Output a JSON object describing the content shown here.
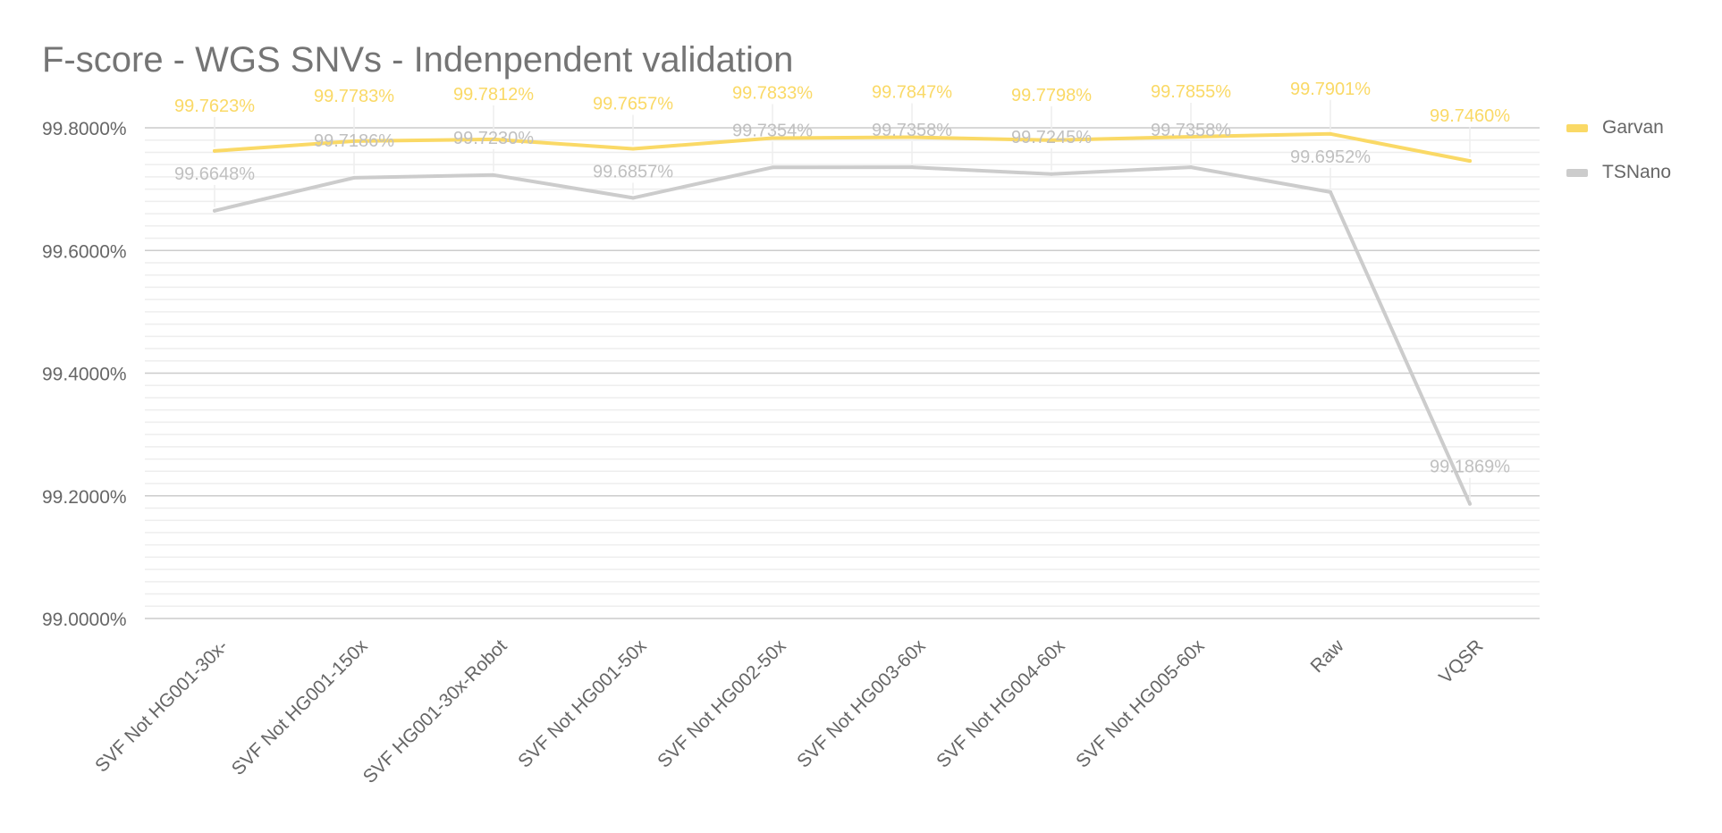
{
  "chart_data": {
    "type": "line",
    "title": "F-score - WGS SNVs - Indenpendent validation",
    "xlabel": "",
    "ylabel": "",
    "categories": [
      "SVF Not HG001-30x-",
      "SVF Not HG001-150x",
      "SVF HG001-30x-Robot",
      "SVF Not HG001-50x",
      "SVF Not HG002-50x",
      "SVF Not HG003-60x",
      "SVF Not HG004-60x",
      "SVF Not HG005-60x",
      "Raw",
      "VQSR"
    ],
    "series": [
      {
        "name": "Garvan",
        "color": "#fad966",
        "values": [
          99.7623,
          99.7783,
          99.7812,
          99.7657,
          99.7833,
          99.7847,
          99.7798,
          99.7855,
          99.7901,
          99.746
        ],
        "labels": [
          "99.7623%",
          "99.7783%",
          "99.7812%",
          "99.7657%",
          "99.7833%",
          "99.7847%",
          "99.7798%",
          "99.7855%",
          "99.7901%",
          "99.7460%"
        ]
      },
      {
        "name": "TSNano",
        "color": "#cccccc",
        "values": [
          99.6648,
          99.7186,
          99.723,
          99.6857,
          99.7354,
          99.7358,
          99.7245,
          99.7358,
          99.6952,
          99.1869
        ],
        "labels": [
          "99.6648%",
          "99.7186%",
          "99.7230%",
          "99.6857%",
          "99.7354%",
          "99.7358%",
          "99.7245%",
          "99.7358%",
          "99.6952%",
          "99.1869%"
        ]
      }
    ],
    "ylim": [
      99.0,
      99.8
    ],
    "yticks": [
      99.0,
      99.2,
      99.4,
      99.6,
      99.8
    ],
    "ytick_labels": [
      "99.0000%",
      "99.2000%",
      "99.4000%",
      "99.6000%",
      "99.8000%"
    ],
    "grid": true,
    "legend_position": "right"
  }
}
